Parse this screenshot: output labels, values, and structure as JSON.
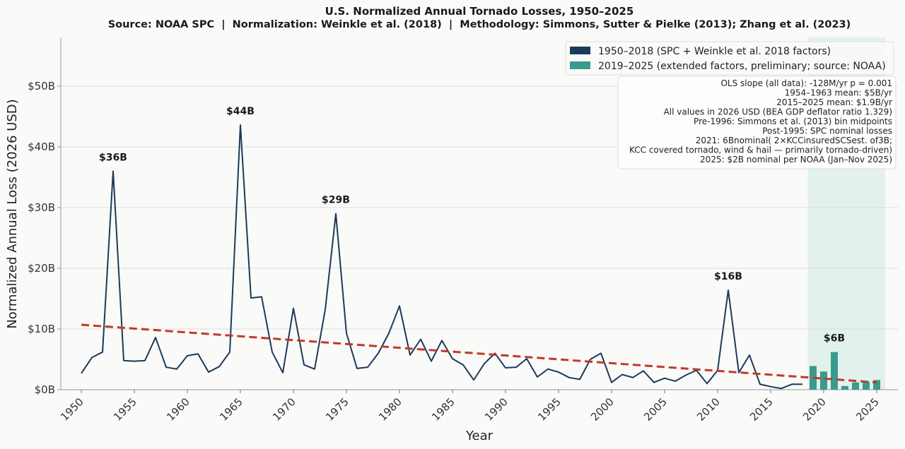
{
  "chart_data": {
    "type": "line",
    "title": "U.S. Normalized Annual Tornado Losses, 1950–2025",
    "subtitle": "Source: NOAA SPC  |  Normalization: Weinkle et al. (2018)  |  Methodology: Simmons, Sutter & Pielke (2013); Zhang et al. (2023)",
    "xlabel": "Year",
    "ylabel": "Normalized Annual Loss (2026 USD)",
    "xlim": [
      1948.2,
      2027.2
    ],
    "ylim": [
      0,
      50.5
    ],
    "grid": true,
    "x_ticks": [
      1950,
      1955,
      1960,
      1965,
      1970,
      1975,
      1980,
      1985,
      1990,
      1995,
      2000,
      2005,
      2010,
      2015,
      2020,
      2025
    ],
    "y_ticks": [
      0,
      10,
      20,
      30,
      40,
      50
    ],
    "y_tick_labels": [
      "$0B",
      "$10B",
      "$20B",
      "$30B",
      "$40B",
      "$50B"
    ],
    "series": [
      {
        "name": "1950–2018  (SPC + Weinkle et al. 2018 factors)",
        "kind": "line",
        "color": "#1c3a5c",
        "x": [
          1950,
          1951,
          1952,
          1953,
          1954,
          1955,
          1956,
          1957,
          1958,
          1959,
          1960,
          1961,
          1962,
          1963,
          1964,
          1965,
          1966,
          1967,
          1968,
          1969,
          1970,
          1971,
          1972,
          1973,
          1974,
          1975,
          1976,
          1977,
          1978,
          1979,
          1980,
          1981,
          1982,
          1983,
          1984,
          1985,
          1986,
          1987,
          1988,
          1989,
          1990,
          1991,
          1992,
          1993,
          1994,
          1995,
          1996,
          1997,
          1998,
          1999,
          2000,
          2001,
          2002,
          2003,
          2004,
          2005,
          2006,
          2007,
          2008,
          2009,
          2010,
          2011,
          2012,
          2013,
          2014,
          2015,
          2016,
          2017,
          2018
        ],
        "values": [
          2.7,
          5.3,
          6.2,
          36.0,
          4.8,
          4.7,
          4.8,
          8.6,
          3.7,
          3.4,
          5.6,
          5.9,
          2.9,
          3.8,
          6.2,
          43.6,
          15.1,
          15.3,
          6.2,
          2.8,
          13.4,
          4.1,
          3.4,
          13.2,
          29.0,
          9.3,
          3.5,
          3.7,
          6.0,
          9.3,
          13.8,
          5.7,
          8.3,
          4.7,
          8.1,
          5.1,
          4.1,
          1.6,
          4.3,
          6.0,
          3.6,
          3.7,
          5.1,
          2.1,
          3.4,
          2.9,
          2.0,
          1.7,
          5.0,
          6.0,
          1.2,
          2.5,
          2.0,
          3.1,
          1.2,
          1.9,
          1.4,
          2.4,
          3.2,
          1.0,
          3.2,
          16.4,
          2.8,
          5.7,
          0.9,
          0.5,
          0.2,
          0.9,
          0.9
        ]
      },
      {
        "name": "2019–2025  (extended factors, preliminary; source: NOAA)",
        "kind": "bar",
        "color": "#3a9a8c",
        "x": [
          2019,
          2020,
          2021,
          2022,
          2023,
          2024,
          2025
        ],
        "values": [
          3.9,
          3.0,
          6.2,
          0.6,
          1.2,
          1.3,
          1.6
        ]
      },
      {
        "name": "OLS trend",
        "kind": "trendline",
        "color": "#c0392b",
        "x": [
          1950,
          2025
        ],
        "values": [
          10.7,
          1.2
        ]
      }
    ],
    "highlight_span": {
      "x": [
        2018.5,
        2025.8
      ],
      "color": "#d8ede8"
    },
    "annotations": [
      {
        "x": 1953,
        "y": 36.0,
        "label": "$36B"
      },
      {
        "x": 1965,
        "y": 43.6,
        "label": "$44B"
      },
      {
        "x": 1974,
        "y": 29.0,
        "label": "$29B"
      },
      {
        "x": 2011,
        "y": 16.4,
        "label": "$16B"
      },
      {
        "x": 2021,
        "y": 6.2,
        "label": "$6B"
      }
    ],
    "legend": {
      "position": "top-right",
      "entries": [
        {
          "label": "1950–2018  (SPC + Weinkle et al. 2018 factors)",
          "color": "#1c3a5c"
        },
        {
          "label": "2019–2025  (extended factors, preliminary; source: NOAA)",
          "color": "#3a9a8c"
        }
      ]
    },
    "notes": [
      "OLS slope (all data): -128M/yr   p = 0.001",
      "1954–1963 mean: $5B/yr",
      "2015–2025 mean: $1.9B/yr",
      "All values in 2026 USD (BEA GDP deflator ratio 1.329)",
      "Pre-1996: Simmons et al. (2013) bin midpoints",
      "Post-1995: SPC nominal losses",
      "2021: 6Bnominal( 2×KCCinsuredSCSest. of3B;",
      "KCC covered tornado, wind & hail — primarily tornado-driven)",
      "2025: $2B nominal per NOAA (Jan–Nov 2025)"
    ]
  }
}
